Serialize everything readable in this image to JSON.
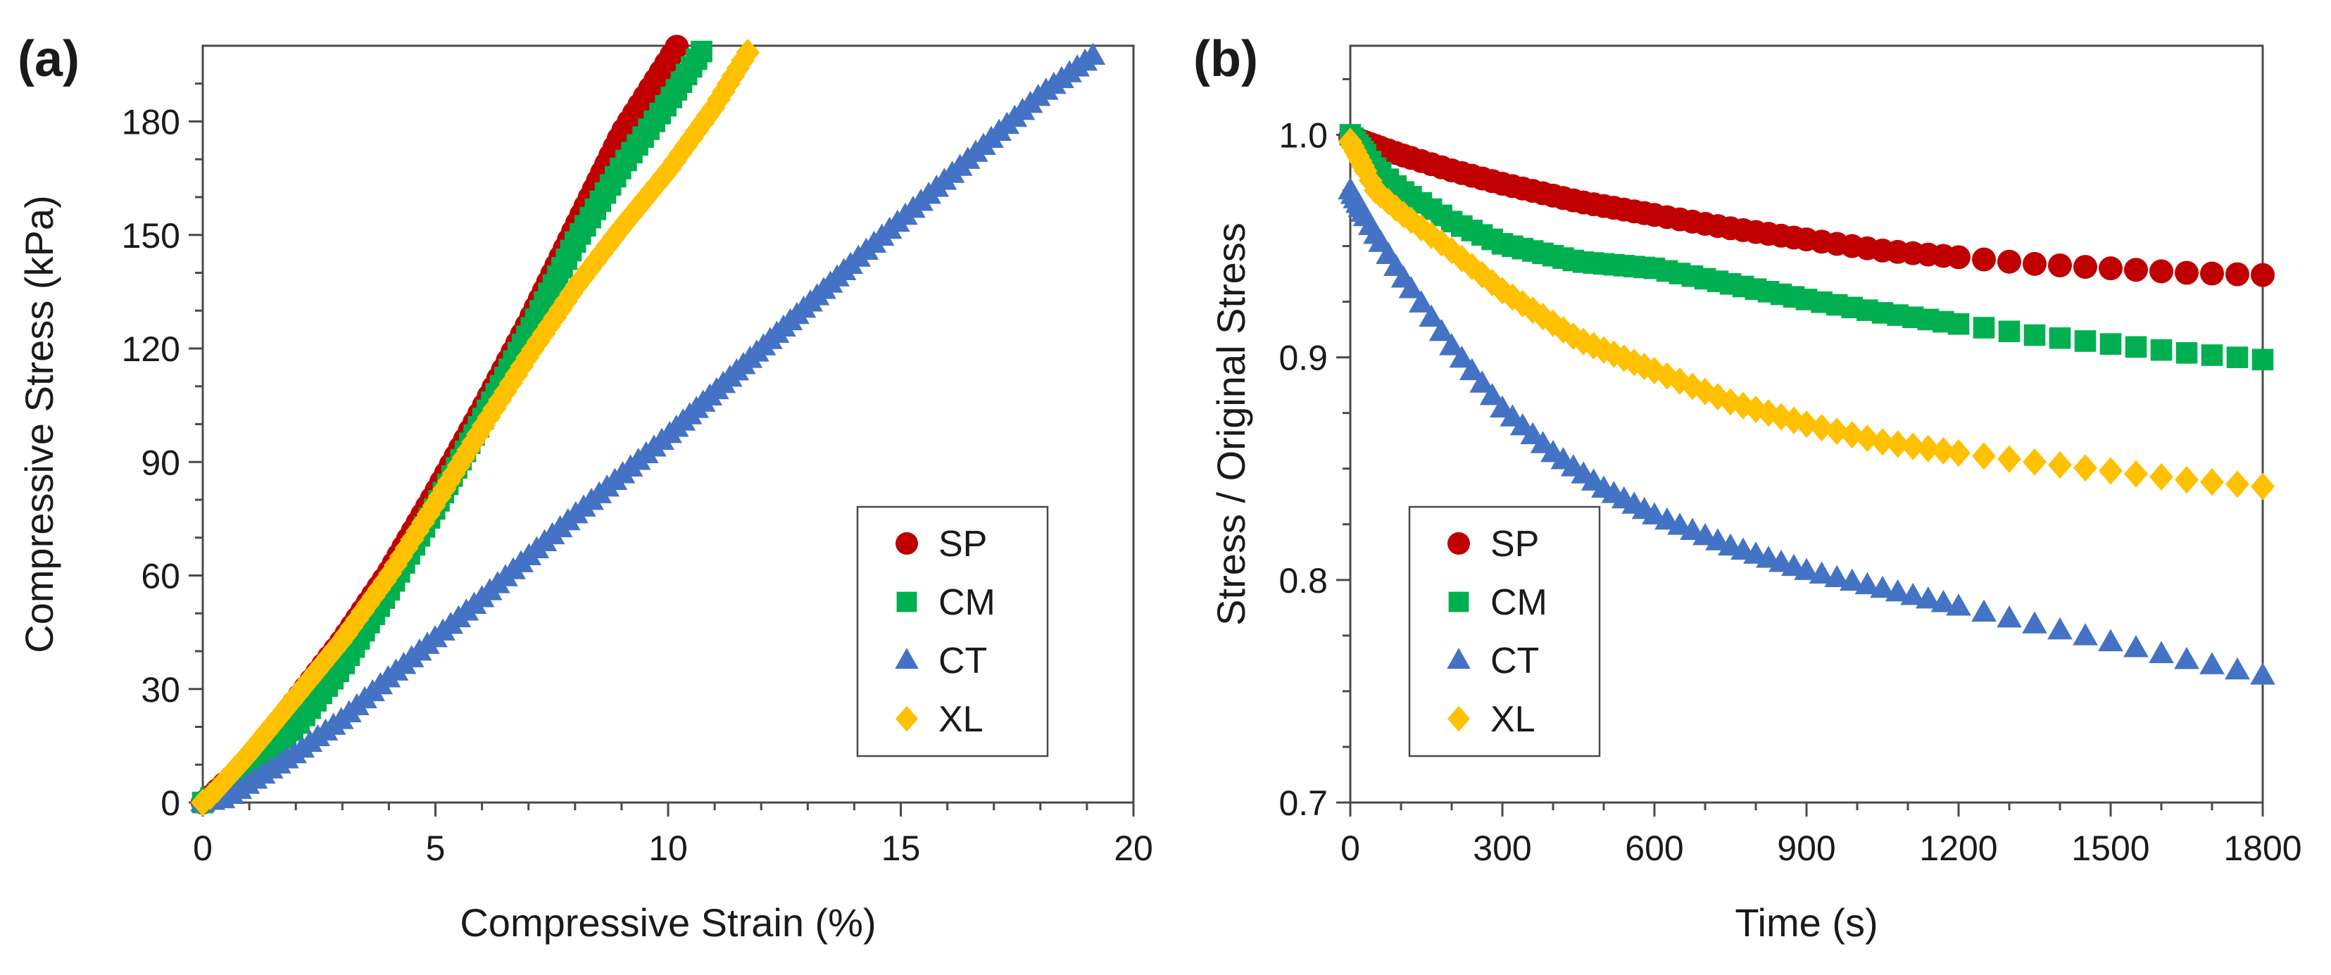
{
  "chart_data": [
    {
      "panel": "(a)",
      "type": "scatter",
      "xlabel": "Compressive Strain (%)",
      "ylabel": "Compressive Stress (kPa)",
      "xlim": [
        0,
        20
      ],
      "ylim": [
        0,
        200
      ],
      "xticks": [
        0,
        5,
        10,
        15,
        20
      ],
      "yticks": [
        0,
        30,
        60,
        90,
        120,
        150,
        180
      ],
      "xminor": [
        1,
        2,
        3,
        4,
        6,
        7,
        8,
        9,
        11,
        12,
        13,
        14,
        16,
        17,
        18,
        19
      ],
      "yminor": [
        10,
        20,
        40,
        50,
        70,
        80,
        100,
        110,
        130,
        140,
        160,
        170,
        190
      ],
      "legend_position": "bottom-right",
      "series": [
        {
          "name": "SP",
          "marker": "circle",
          "color": "#C00000",
          "end_x": 10.2,
          "curve": [
            [
              0,
              0
            ],
            [
              0.2,
              2
            ],
            [
              1,
              11
            ],
            [
              2,
              27
            ],
            [
              3,
              43
            ],
            [
              4,
              61
            ],
            [
              5,
              82
            ],
            [
              6,
              104
            ],
            [
              7,
              127
            ],
            [
              8,
              152
            ],
            [
              9,
              177
            ],
            [
              10.2,
              200
            ]
          ]
        },
        {
          "name": "CM",
          "marker": "square",
          "color": "#00B050",
          "end_x": 10.8,
          "curve": [
            [
              0,
              0
            ],
            [
              0.3,
              2
            ],
            [
              1,
              7
            ],
            [
              2,
              20
            ],
            [
              3,
              36
            ],
            [
              4,
              56
            ],
            [
              5,
              78
            ],
            [
              6,
              101
            ],
            [
              7,
              124
            ],
            [
              8,
              148
            ],
            [
              9,
              168
            ],
            [
              10,
              185
            ],
            [
              10.8,
              200
            ]
          ]
        },
        {
          "name": "CT",
          "marker": "triangle",
          "color": "#4472C4",
          "end_x": 19.2,
          "curve": [
            [
              0,
              0
            ],
            [
              0.5,
              1
            ],
            [
              1,
              5
            ],
            [
              2,
              13
            ],
            [
              3,
              22
            ],
            [
              4,
              33
            ],
            [
              6,
              54
            ],
            [
              8,
              76
            ],
            [
              10,
              97
            ],
            [
              12,
              120
            ],
            [
              14,
              143
            ],
            [
              16,
              165
            ],
            [
              18,
              187
            ],
            [
              19.2,
              198
            ]
          ]
        },
        {
          "name": "XL",
          "marker": "diamond",
          "color": "#FFC000",
          "end_x": 11.8,
          "curve": [
            [
              0,
              0
            ],
            [
              0.2,
              2
            ],
            [
              1,
              13
            ],
            [
              2,
              28
            ],
            [
              3,
              43
            ],
            [
              4,
              60
            ],
            [
              5,
              79
            ],
            [
              6,
              99
            ],
            [
              7,
              118
            ],
            [
              8,
              136
            ],
            [
              9,
              152
            ],
            [
              10,
              167
            ],
            [
              11,
              184
            ],
            [
              11.8,
              200
            ]
          ]
        }
      ]
    },
    {
      "panel": "(b)",
      "type": "scatter",
      "xlabel": "Time (s)",
      "ylabel": "Stress / Original Stress",
      "xlim": [
        0,
        1800
      ],
      "ylim": [
        0.7,
        1.04
      ],
      "xticks": [
        0,
        300,
        600,
        900,
        1200,
        1500,
        1800
      ],
      "yticks": [
        0.7,
        0.8,
        0.9,
        1.0
      ],
      "ytick_labels": [
        "0.7",
        "0.8",
        "0.9",
        "1.0"
      ],
      "xminor": [
        100,
        200,
        400,
        500,
        700,
        800,
        1000,
        1100,
        1300,
        1400,
        1600,
        1700
      ],
      "yminor": [
        0.725,
        0.75,
        0.775,
        0.825,
        0.85,
        0.875,
        0.925,
        0.95,
        0.975,
        1.025
      ],
      "legend_position": "bottom-left",
      "series": [
        {
          "name": "SP",
          "marker": "circle",
          "color": "#C00000",
          "curve": [
            [
              0,
              0.999
            ],
            [
              100,
              0.991
            ],
            [
              200,
              0.984
            ],
            [
              300,
              0.978
            ],
            [
              450,
              0.97
            ],
            [
              600,
              0.964
            ],
            [
              750,
              0.958
            ],
            [
              900,
              0.953
            ],
            [
              1050,
              0.948
            ],
            [
              1200,
              0.945
            ],
            [
              1350,
              0.942
            ],
            [
              1500,
              0.94
            ],
            [
              1650,
              0.938
            ],
            [
              1800,
              0.937
            ]
          ]
        },
        {
          "name": "CM",
          "marker": "square",
          "color": "#00B050",
          "curve": [
            [
              0,
              1.0
            ],
            [
              50,
              0.985
            ],
            [
              100,
              0.975
            ],
            [
              200,
              0.961
            ],
            [
              300,
              0.951
            ],
            [
              450,
              0.943
            ],
            [
              600,
              0.94
            ],
            [
              750,
              0.933
            ],
            [
              900,
              0.926
            ],
            [
              1050,
              0.92
            ],
            [
              1200,
              0.915
            ],
            [
              1350,
              0.91
            ],
            [
              1500,
              0.906
            ],
            [
              1650,
              0.902
            ],
            [
              1800,
              0.899
            ]
          ]
        },
        {
          "name": "CT",
          "marker": "triangle",
          "color": "#4472C4",
          "curve": [
            [
              0,
              0.975
            ],
            [
              50,
              0.955
            ],
            [
              100,
              0.937
            ],
            [
              200,
              0.905
            ],
            [
              300,
              0.877
            ],
            [
              400,
              0.857
            ],
            [
              500,
              0.841
            ],
            [
              600,
              0.829
            ],
            [
              750,
              0.815
            ],
            [
              900,
              0.804
            ],
            [
              1050,
              0.796
            ],
            [
              1200,
              0.788
            ],
            [
              1350,
              0.78
            ],
            [
              1500,
              0.772
            ],
            [
              1650,
              0.764
            ],
            [
              1800,
              0.757
            ]
          ]
        },
        {
          "name": "XL",
          "marker": "diamond",
          "color": "#FFC000",
          "curve": [
            [
              0,
              0.997
            ],
            [
              50,
              0.975
            ],
            [
              100,
              0.965
            ],
            [
              200,
              0.948
            ],
            [
              300,
              0.93
            ],
            [
              450,
              0.908
            ],
            [
              600,
              0.894
            ],
            [
              750,
              0.88
            ],
            [
              900,
              0.87
            ],
            [
              1050,
              0.862
            ],
            [
              1200,
              0.857
            ],
            [
              1350,
              0.853
            ],
            [
              1500,
              0.849
            ],
            [
              1650,
              0.845
            ],
            [
              1800,
              0.842
            ]
          ]
        }
      ]
    }
  ]
}
